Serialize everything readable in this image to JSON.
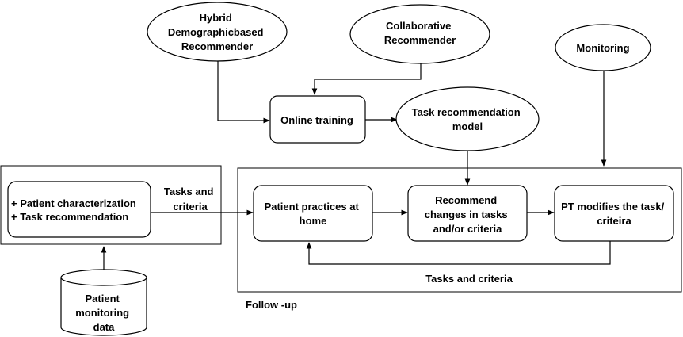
{
  "nodes": {
    "hybrid": [
      "Hybrid",
      "Demographicbased",
      "Recommender"
    ],
    "collaborative": [
      "Collaborative",
      "Recommender"
    ],
    "monitoring": [
      "Monitoring"
    ],
    "online_training": [
      "Online training"
    ],
    "task_model": [
      "Task recommendation",
      "model"
    ],
    "patient_char": [
      "+ Patient characterization",
      "+ Task recommendation"
    ],
    "patient_practices": [
      "Patient practices at",
      "home"
    ],
    "recommend_changes": [
      "Recommend",
      "changes in tasks",
      "and/or criteria"
    ],
    "pt_modifies": [
      "PT modifies the task/",
      "criteira"
    ],
    "patient_data": [
      "Patient",
      "monitoring",
      "data"
    ]
  },
  "labels": {
    "tasks_criteria_left": [
      "Tasks and",
      "criteria"
    ],
    "tasks_criteria_bottom": [
      "Tasks and criteria"
    ],
    "follow_up": [
      "Follow -up"
    ]
  }
}
